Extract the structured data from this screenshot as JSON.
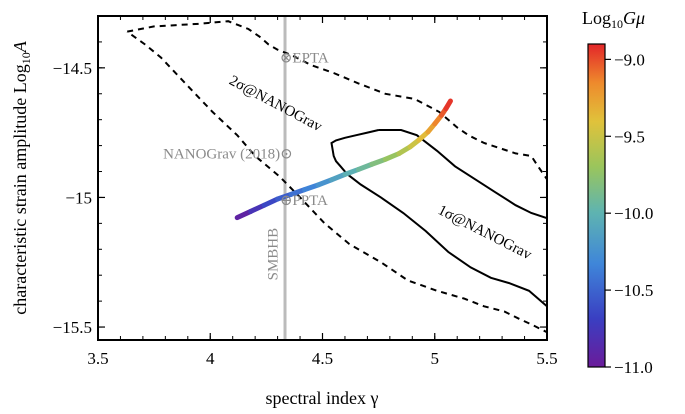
{
  "chart_data": {
    "type": "line",
    "xlabel": "spectral index γ",
    "ylabel_prefix": "characteristic strain amplitude  Log",
    "ylabel_sub": "10",
    "ylabel_var": "A",
    "xlim": [
      3.5,
      5.5
    ],
    "ylim": [
      -15.55,
      -14.3
    ],
    "x_ticks": [
      3.5,
      4,
      4.5,
      5,
      5.5
    ],
    "x_tick_labels": [
      "3.5",
      "4",
      "4.5",
      "5",
      "5.5"
    ],
    "y_ticks": [
      -15.5,
      -15,
      -14.5
    ],
    "y_tick_labels": [
      "−15.5",
      "−15",
      "−14.5"
    ],
    "grid": false,
    "colorbar": {
      "title_prefix": "Log",
      "title_sub": "10",
      "title_var": "Gμ",
      "range": [
        -11.0,
        -8.9
      ],
      "ticks": [
        -9.0,
        -9.5,
        -10.0,
        -10.5,
        -11.0
      ],
      "tick_labels": [
        "−9.0",
        "−9.5",
        "−10.0",
        "−10.5",
        "−11.0"
      ]
    },
    "series": [
      {
        "name": "2σ@NANOGrav",
        "style": "dashed",
        "color": "#000000",
        "x": [
          3.63,
          3.75,
          3.95,
          4.08,
          4.17,
          4.22,
          4.26,
          4.3,
          4.36,
          4.45,
          4.55,
          4.66,
          4.78,
          4.91,
          5.02,
          5.1,
          5.15,
          5.22,
          5.29,
          5.36,
          5.43,
          5.46,
          5.5,
          5.5,
          5.43,
          5.38,
          5.31,
          5.22,
          5.13,
          5.01,
          4.88,
          4.76,
          4.62,
          4.51,
          4.4,
          4.31,
          4.2,
          4.12,
          4.01,
          3.9,
          3.78,
          3.71,
          3.63
        ],
        "y": [
          -14.36,
          -14.34,
          -14.33,
          -14.32,
          -14.35,
          -14.38,
          -14.41,
          -14.43,
          -14.45,
          -14.49,
          -14.52,
          -14.56,
          -14.6,
          -14.62,
          -14.67,
          -14.73,
          -14.76,
          -14.79,
          -14.81,
          -14.83,
          -14.84,
          -14.88,
          -14.93,
          -15.52,
          -15.49,
          -15.47,
          -15.44,
          -15.42,
          -15.39,
          -15.36,
          -15.32,
          -15.25,
          -15.18,
          -15.1,
          -15.0,
          -14.92,
          -14.84,
          -14.76,
          -14.67,
          -14.57,
          -14.46,
          -14.41,
          -14.36
        ]
      },
      {
        "name": "1σ@NANOGrav",
        "style": "solid",
        "color": "#000000",
        "x": [
          4.75,
          4.85,
          4.92,
          5.01,
          5.09,
          5.18,
          5.27,
          5.36,
          5.43,
          5.5,
          5.5,
          5.42,
          5.33,
          5.25,
          5.16,
          5.06,
          4.96,
          4.86,
          4.76,
          4.67,
          4.61,
          4.58,
          4.56,
          4.55,
          4.54,
          4.56,
          4.6,
          4.65,
          4.7,
          4.75
        ],
        "y": [
          -14.74,
          -14.74,
          -14.76,
          -14.82,
          -14.88,
          -14.93,
          -14.98,
          -15.03,
          -15.06,
          -15.08,
          -15.42,
          -15.36,
          -15.33,
          -15.31,
          -15.27,
          -15.21,
          -15.13,
          -15.06,
          -15.0,
          -14.95,
          -14.91,
          -14.88,
          -14.86,
          -14.84,
          -14.79,
          -14.78,
          -14.77,
          -14.76,
          -14.75,
          -14.74
        ]
      },
      {
        "name": "",
        "style": "colormap",
        "x": [
          4.12,
          4.18,
          4.24,
          4.3,
          4.36,
          4.42,
          4.48,
          4.54,
          4.6,
          4.66,
          4.72,
          4.78,
          4.84,
          4.89,
          4.93,
          4.97,
          5.0,
          5.03,
          5.05,
          5.07
        ],
        "y": [
          -15.078,
          -15.054,
          -15.03,
          -15.006,
          -14.988,
          -14.97,
          -14.952,
          -14.932,
          -14.911,
          -14.892,
          -14.872,
          -14.853,
          -14.831,
          -14.805,
          -14.778,
          -14.747,
          -14.716,
          -14.683,
          -14.657,
          -14.628
        ],
        "gmu": [
          -11.0,
          -10.86,
          -10.72,
          -10.6,
          -10.49,
          -10.39,
          -10.29,
          -10.19,
          -10.08,
          -9.98,
          -9.87,
          -9.77,
          -9.66,
          -9.54,
          -9.43,
          -9.31,
          -9.2,
          -9.08,
          -8.98,
          -8.9
        ]
      }
    ],
    "vertical_lines": [
      {
        "name": "SMBHB",
        "x": 4.333,
        "color": "#bbbbbb"
      }
    ],
    "annotations": [
      {
        "text": "⊗EPTA",
        "x": 4.31,
        "y": -14.48,
        "color": "#8a8a8a"
      },
      {
        "text": "NANOGrav (2018)⊙",
        "x": 3.79,
        "y": -14.85,
        "color": "#8a8a8a"
      },
      {
        "text": "⊕PPTA",
        "x": 4.31,
        "y": -15.03,
        "color": "#8a8a8a"
      },
      {
        "text": "2σ@NANOGrav",
        "x": 4.08,
        "y": -14.56,
        "color": "#000000",
        "angle": 28
      },
      {
        "text": "1σ@NANOGrav",
        "x": 5.01,
        "y": -15.06,
        "color": "#000000",
        "angle": 27
      },
      {
        "text": "SMBHB",
        "x": 4.3,
        "y": -15.32,
        "color": "#8a8a8a",
        "angle": -90
      }
    ]
  }
}
